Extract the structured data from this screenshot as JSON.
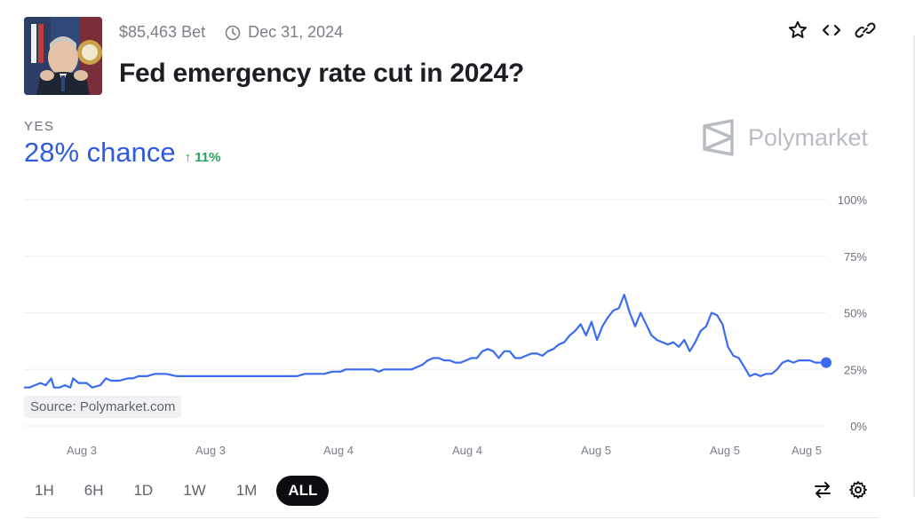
{
  "header": {
    "volume": "$85,463 Bet",
    "end_date": "Dec 31, 2024",
    "title": "Fed emergency rate cut in 2024?"
  },
  "outcome": {
    "label": "YES",
    "chance": "28% chance",
    "delta": "↑ 11%",
    "color": "#2e5bdc",
    "delta_color": "#27a35a"
  },
  "brand": {
    "name": "Polymarket"
  },
  "source_label": "Source: Polymarket.com",
  "timeline": {
    "buttons": [
      "1H",
      "6H",
      "1D",
      "1W",
      "1M",
      "ALL"
    ],
    "active": "ALL"
  },
  "icons": [
    "star-icon",
    "embed-icon",
    "link-icon",
    "swap-icon",
    "gear-icon",
    "clock-icon"
  ],
  "chart_data": {
    "type": "line",
    "title": "",
    "xlabel": "",
    "ylabel": "",
    "ylim": [
      0,
      100
    ],
    "y_ticks": [
      "100%",
      "75%",
      "50%",
      "25%",
      "0%"
    ],
    "x_tick_labels": [
      "Aug 3",
      "Aug 3",
      "Aug 4",
      "Aug 4",
      "Aug 5",
      "Aug 5",
      "Aug 5"
    ],
    "grid": true,
    "series": [
      {
        "color": "#3a6cf0",
        "points": [
          [
            0,
            17
          ],
          [
            2,
            17
          ],
          [
            4,
            18
          ],
          [
            6,
            19
          ],
          [
            8,
            18
          ],
          [
            10,
            21
          ],
          [
            11,
            17
          ],
          [
            13,
            17
          ],
          [
            15,
            18
          ],
          [
            17,
            17
          ],
          [
            18,
            21
          ],
          [
            20,
            19
          ],
          [
            23,
            19
          ],
          [
            25,
            17
          ],
          [
            28,
            18
          ],
          [
            30,
            21
          ],
          [
            32,
            20
          ],
          [
            35,
            20
          ],
          [
            38,
            21
          ],
          [
            40,
            21
          ],
          [
            42,
            22
          ],
          [
            45,
            22
          ],
          [
            48,
            23
          ],
          [
            52,
            23
          ],
          [
            56,
            22
          ],
          [
            60,
            22
          ],
          [
            65,
            22
          ],
          [
            70,
            22
          ],
          [
            75,
            22
          ],
          [
            80,
            22
          ],
          [
            85,
            22
          ],
          [
            90,
            22
          ],
          [
            95,
            22
          ],
          [
            100,
            22
          ],
          [
            103,
            23
          ],
          [
            106,
            23
          ],
          [
            110,
            23
          ],
          [
            113,
            24
          ],
          [
            116,
            24
          ],
          [
            118,
            25
          ],
          [
            120,
            25
          ],
          [
            122,
            25
          ],
          [
            124,
            25
          ],
          [
            126,
            25
          ],
          [
            128,
            25
          ],
          [
            130,
            24
          ],
          [
            132,
            25
          ],
          [
            134,
            25
          ],
          [
            136,
            25
          ],
          [
            138,
            25
          ],
          [
            140,
            25
          ],
          [
            142,
            25
          ],
          [
            144,
            26
          ],
          [
            146,
            27
          ],
          [
            148,
            29
          ],
          [
            150,
            30
          ],
          [
            152,
            30
          ],
          [
            154,
            29
          ],
          [
            156,
            29
          ],
          [
            158,
            28
          ],
          [
            160,
            28
          ],
          [
            162,
            29
          ],
          [
            164,
            30
          ],
          [
            166,
            30
          ],
          [
            168,
            33
          ],
          [
            170,
            34
          ],
          [
            172,
            33
          ],
          [
            174,
            30
          ],
          [
            176,
            33
          ],
          [
            178,
            33
          ],
          [
            180,
            30
          ],
          [
            182,
            30
          ],
          [
            184,
            31
          ],
          [
            186,
            32
          ],
          [
            188,
            32
          ],
          [
            190,
            31
          ],
          [
            192,
            33
          ],
          [
            194,
            34
          ],
          [
            196,
            36
          ],
          [
            198,
            37
          ],
          [
            200,
            40
          ],
          [
            202,
            42
          ],
          [
            204,
            45
          ],
          [
            206,
            40
          ],
          [
            208,
            46
          ],
          [
            210,
            38
          ],
          [
            212,
            44
          ],
          [
            214,
            48
          ],
          [
            216,
            51
          ],
          [
            218,
            52
          ],
          [
            220,
            58
          ],
          [
            222,
            50
          ],
          [
            224,
            44
          ],
          [
            226,
            50
          ],
          [
            228,
            45
          ],
          [
            230,
            40
          ],
          [
            232,
            38
          ],
          [
            234,
            37
          ],
          [
            236,
            36
          ],
          [
            238,
            37
          ],
          [
            240,
            35
          ],
          [
            242,
            38
          ],
          [
            244,
            33
          ],
          [
            246,
            37
          ],
          [
            248,
            42
          ],
          [
            250,
            44
          ],
          [
            252,
            50
          ],
          [
            254,
            49
          ],
          [
            256,
            45
          ],
          [
            258,
            35
          ],
          [
            260,
            31
          ],
          [
            262,
            30
          ],
          [
            264,
            26
          ],
          [
            266,
            22
          ],
          [
            268,
            23
          ],
          [
            270,
            22
          ],
          [
            272,
            23
          ],
          [
            274,
            23
          ],
          [
            276,
            25
          ],
          [
            278,
            28
          ],
          [
            280,
            29
          ],
          [
            282,
            28
          ],
          [
            284,
            29
          ],
          [
            286,
            29
          ],
          [
            288,
            29
          ],
          [
            290,
            28
          ],
          [
            292,
            28
          ],
          [
            294,
            28
          ]
        ]
      }
    ]
  }
}
